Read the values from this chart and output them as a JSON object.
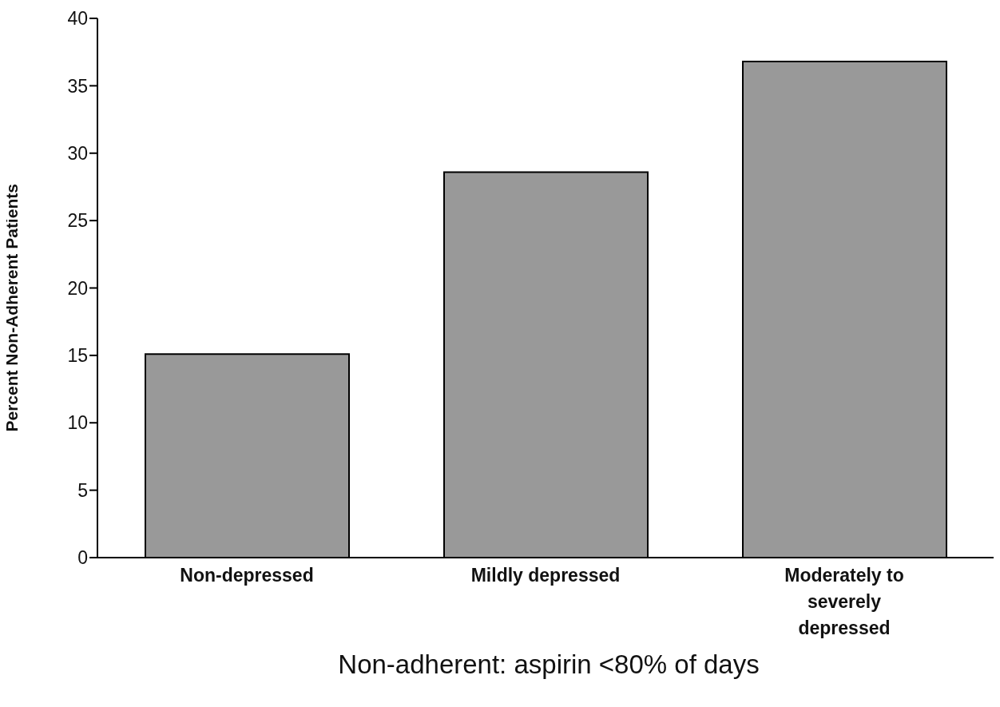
{
  "chart_data": {
    "type": "bar",
    "xlabel": "Non-adherent: aspirin <80% of days",
    "ylabel": "Percent Non-Adherent Patients",
    "categories": [
      "Non-depressed",
      "Mildly depressed",
      "Moderately to severely depressed"
    ],
    "values": [
      15.1,
      28.6,
      36.8
    ],
    "color": "#999999",
    "ylim": [
      0,
      40
    ],
    "yticks": [
      0,
      5,
      10,
      15,
      20,
      25,
      30,
      35,
      40
    ],
    "grid": false,
    "legend": false
  }
}
